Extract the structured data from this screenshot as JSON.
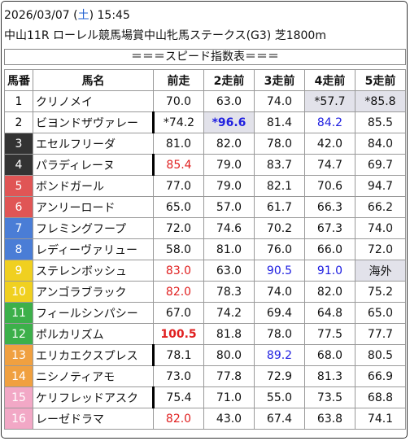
{
  "header": {
    "date_prefix": "2026/03/07 (",
    "weekday": "土",
    "date_suffix": ") 15:45",
    "race_line": "中山11R ローレル競馬場賞中山牝馬ステークス(G3) 芝1800m"
  },
  "speed_title": "＝＝＝スピード指数表＝＝＝",
  "columns": [
    "馬番",
    "馬名",
    "前走",
    "2走前",
    "3走前",
    "4走前",
    "5走前"
  ],
  "rows": [
    {
      "num": "1",
      "name": "クリノメイ",
      "v": [
        "70.0",
        "63.0",
        "74.0",
        "*57.7",
        "*85.8"
      ]
    },
    {
      "num": "2",
      "name": "ビヨンドザヴァレー",
      "v": [
        "*74.2",
        "*96.6",
        "81.4",
        "84.2",
        "85.5"
      ]
    },
    {
      "num": "3",
      "name": "エセルフリーダ",
      "v": [
        "81.0",
        "82.0",
        "78.0",
        "42.0",
        "84.0"
      ]
    },
    {
      "num": "4",
      "name": "パラディレーヌ",
      "v": [
        "85.4",
        "79.0",
        "83.7",
        "74.7",
        "69.7"
      ]
    },
    {
      "num": "5",
      "name": "ボンドガール",
      "v": [
        "77.0",
        "79.0",
        "82.1",
        "70.6",
        "94.7"
      ]
    },
    {
      "num": "6",
      "name": "アンリーロード",
      "v": [
        "65.0",
        "57.0",
        "61.7",
        "66.3",
        "66.2"
      ]
    },
    {
      "num": "7",
      "name": "フレミングフープ",
      "v": [
        "72.0",
        "74.6",
        "70.2",
        "67.3",
        "74.0"
      ]
    },
    {
      "num": "8",
      "name": "レディーヴァリュー",
      "v": [
        "58.0",
        "81.0",
        "76.0",
        "66.0",
        "72.0"
      ]
    },
    {
      "num": "9",
      "name": "ステレンボッシュ",
      "v": [
        "83.0",
        "63.0",
        "90.5",
        "91.0",
        "海外"
      ]
    },
    {
      "num": "10",
      "name": "アンゴラブラック",
      "v": [
        "82.0",
        "78.3",
        "74.0",
        "82.0",
        "75.2"
      ]
    },
    {
      "num": "11",
      "name": "フィールシンパシー",
      "v": [
        "67.0",
        "74.2",
        "69.4",
        "64.8",
        "65.0"
      ]
    },
    {
      "num": "12",
      "name": "ポルカリズム",
      "v": [
        "100.5",
        "81.8",
        "78.0",
        "77.5",
        "77.7"
      ]
    },
    {
      "num": "13",
      "name": "エリカエクスプレス",
      "v": [
        "78.1",
        "80.0",
        "89.2",
        "68.0",
        "80.5"
      ]
    },
    {
      "num": "14",
      "name": "ニシノティアモ",
      "v": [
        "73.0",
        "77.8",
        "72.9",
        "81.3",
        "66.9"
      ]
    },
    {
      "num": "15",
      "name": "ケリフレッドアスク",
      "v": [
        "75.4",
        "71.0",
        "55.0",
        "73.5",
        "68.8"
      ]
    },
    {
      "num": "16",
      "name": "レーゼドラマ",
      "v": [
        "82.0",
        "43.0",
        "67.4",
        "63.8",
        "74.1"
      ]
    }
  ],
  "colors": {
    "red": "#e02020",
    "blue": "#2020e0",
    "gray_cell": "#e2e2ea",
    "frame_1": "#ffffff",
    "frame_2": "#ffffff",
    "frame_3": "#333333",
    "frame_4": "#333333",
    "frame_5": "#e05555",
    "frame_6": "#e05555",
    "frame_7": "#4a7dd6",
    "frame_8": "#4a7dd6",
    "frame_9": "#f0d020",
    "frame_10": "#f0d020",
    "frame_11": "#3cb04a",
    "frame_12": "#3cb04a",
    "frame_13": "#f0a040",
    "frame_14": "#f0a040",
    "frame_15": "#f2a8c6",
    "frame_16": "#f2a8c6"
  }
}
